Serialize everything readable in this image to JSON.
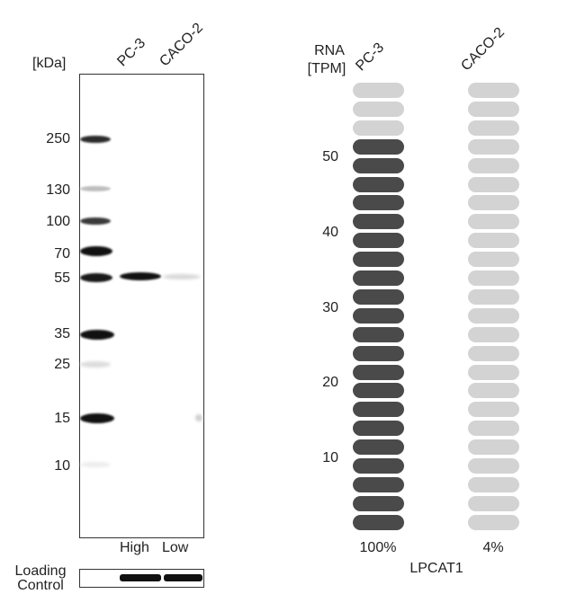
{
  "western_blot": {
    "kda_label": "[kDa]",
    "lanes": [
      "PC-3",
      "CACO-2"
    ],
    "markers": [
      "250",
      "130",
      "100",
      "70",
      "55",
      "35",
      "25",
      "15",
      "10"
    ],
    "expression": [
      "High",
      "Low"
    ],
    "loading_control_label": [
      "Loading",
      "Control"
    ]
  },
  "rna_chart": {
    "axis_label": [
      "RNA",
      "[TPM]"
    ],
    "y_ticks": [
      "50",
      "40",
      "30",
      "20",
      "10"
    ],
    "gene": "LPCAT1",
    "colors": {
      "filled": "#4a4a4a",
      "empty": "#d3d3d3"
    }
  },
  "chart_data": {
    "type": "bar",
    "ylabel": "RNA [TPM]",
    "xlabel": "LPCAT1",
    "categories": [
      "PC-3",
      "CACO-2"
    ],
    "units_total": 24,
    "filled_units": [
      21,
      0
    ],
    "percent_labels": [
      "100%",
      "4%"
    ],
    "y_ticks": [
      10,
      20,
      30,
      40,
      50
    ]
  }
}
